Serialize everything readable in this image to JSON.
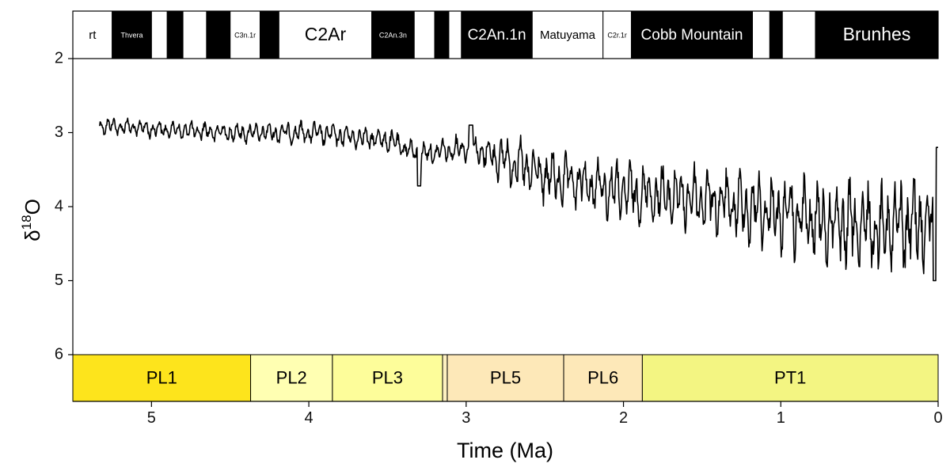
{
  "chart_data": {
    "type": "line",
    "title": "",
    "xlabel": "Time (Ma)",
    "ylabel": "δ18O",
    "ylabel_base": "δ",
    "ylabel_sup": "18",
    "ylabel_tail": "O",
    "xlim": [
      5.5,
      0
    ],
    "ylim": [
      6,
      2
    ],
    "x_ticks": [
      5,
      4,
      3,
      2,
      1,
      0
    ],
    "x_tick_labels": [
      "5",
      "4",
      "3",
      "2",
      "1",
      "0"
    ],
    "y_ticks": [
      2,
      3,
      4,
      5,
      6
    ],
    "y_tick_labels": [
      "2",
      "3",
      "4",
      "5",
      "6"
    ],
    "series": [
      {
        "name": "δ18O",
        "color": "#000000",
        "anchors": [
          {
            "x": 5.33,
            "y": 2.9
          },
          {
            "x": 5.0,
            "y": 2.95
          },
          {
            "x": 4.5,
            "y": 3.0
          },
          {
            "x": 4.0,
            "y": 3.0
          },
          {
            "x": 3.5,
            "y": 3.1
          },
          {
            "x": 3.3,
            "y": 3.3
          },
          {
            "x": 3.0,
            "y": 3.2
          },
          {
            "x": 2.7,
            "y": 3.4
          },
          {
            "x": 2.5,
            "y": 3.6
          },
          {
            "x": 2.0,
            "y": 3.8
          },
          {
            "x": 1.5,
            "y": 3.9
          },
          {
            "x": 1.0,
            "y": 4.1
          },
          {
            "x": 0.5,
            "y": 4.3
          },
          {
            "x": 0.0,
            "y": 4.2
          }
        ],
        "amplitude_anchors": [
          {
            "x": 5.33,
            "a": 0.12
          },
          {
            "x": 3.0,
            "a": 0.18
          },
          {
            "x": 2.7,
            "a": 0.35
          },
          {
            "x": 1.5,
            "a": 0.45
          },
          {
            "x": 0.8,
            "a": 0.6
          },
          {
            "x": 0.0,
            "a": 0.7
          }
        ],
        "features": [
          {
            "x": 3.3,
            "y": 3.72
          },
          {
            "x": 2.97,
            "y": 2.9
          },
          {
            "x": 0.02,
            "y": 5.0
          },
          {
            "x": 0.0,
            "y": 3.2
          }
        ]
      }
    ],
    "magnetostratigraphy": [
      {
        "from": 5.5,
        "to": 5.25,
        "color": "white",
        "label": "rt",
        "label_size": "small"
      },
      {
        "from": 5.25,
        "to": 5.0,
        "color": "black",
        "label": "Thvera",
        "label_size": "tiny"
      },
      {
        "from": 5.0,
        "to": 4.9,
        "color": "white",
        "label": ""
      },
      {
        "from": 4.9,
        "to": 4.8,
        "color": "black",
        "label": ""
      },
      {
        "from": 4.8,
        "to": 4.65,
        "color": "white",
        "label": ""
      },
      {
        "from": 4.65,
        "to": 4.5,
        "color": "black",
        "label": ""
      },
      {
        "from": 4.5,
        "to": 4.31,
        "color": "white",
        "label": "C3n.1r",
        "label_size": "tiny"
      },
      {
        "from": 4.31,
        "to": 4.19,
        "color": "black",
        "label": ""
      },
      {
        "from": 4.19,
        "to": 3.6,
        "color": "white",
        "label": "C2Ar",
        "label_size": "large"
      },
      {
        "from": 3.6,
        "to": 3.33,
        "color": "black",
        "label": "C2An.3n",
        "label_size": "tiny"
      },
      {
        "from": 3.33,
        "to": 3.2,
        "color": "white",
        "label": ""
      },
      {
        "from": 3.2,
        "to": 3.11,
        "color": "black",
        "label": ""
      },
      {
        "from": 3.11,
        "to": 3.03,
        "color": "white",
        "label": ""
      },
      {
        "from": 3.03,
        "to": 2.58,
        "color": "black",
        "label": "C2An.1n",
        "label_size": "medium"
      },
      {
        "from": 2.58,
        "to": 2.13,
        "color": "white",
        "label": "Matuyama",
        "label_size": "small"
      },
      {
        "from": 2.13,
        "to": 1.95,
        "color": "white",
        "label": "C2r.1r",
        "label_size": "tiny"
      },
      {
        "from": 1.95,
        "to": 1.18,
        "color": "black",
        "label": "Cobb Mountain",
        "label_size": "medium"
      },
      {
        "from": 1.18,
        "to": 1.07,
        "color": "white",
        "label": ""
      },
      {
        "from": 1.07,
        "to": 0.99,
        "color": "black",
        "label": ""
      },
      {
        "from": 0.99,
        "to": 0.78,
        "color": "white",
        "label": ""
      },
      {
        "from": 0.78,
        "to": 0.0,
        "color": "black",
        "label": "Brunhes",
        "label_size": "large"
      }
    ],
    "stages": [
      {
        "from": 5.5,
        "to": 4.37,
        "color": "#fde41c",
        "label": "PL1"
      },
      {
        "from": 4.37,
        "to": 3.85,
        "color": "#ffffb2",
        "label": "PL2"
      },
      {
        "from": 3.85,
        "to": 3.15,
        "color": "#fdfd9a",
        "label": "PL3"
      },
      {
        "from": 3.15,
        "to": 3.12,
        "color": "#fdf0c0",
        "label": ""
      },
      {
        "from": 3.12,
        "to": 2.38,
        "color": "#fde8b8",
        "label": "PL5"
      },
      {
        "from": 2.38,
        "to": 1.88,
        "color": "#fde8b8",
        "label": "PL6"
      },
      {
        "from": 1.88,
        "to": 0.0,
        "color": "#f3f582",
        "label": "PT1"
      }
    ]
  }
}
